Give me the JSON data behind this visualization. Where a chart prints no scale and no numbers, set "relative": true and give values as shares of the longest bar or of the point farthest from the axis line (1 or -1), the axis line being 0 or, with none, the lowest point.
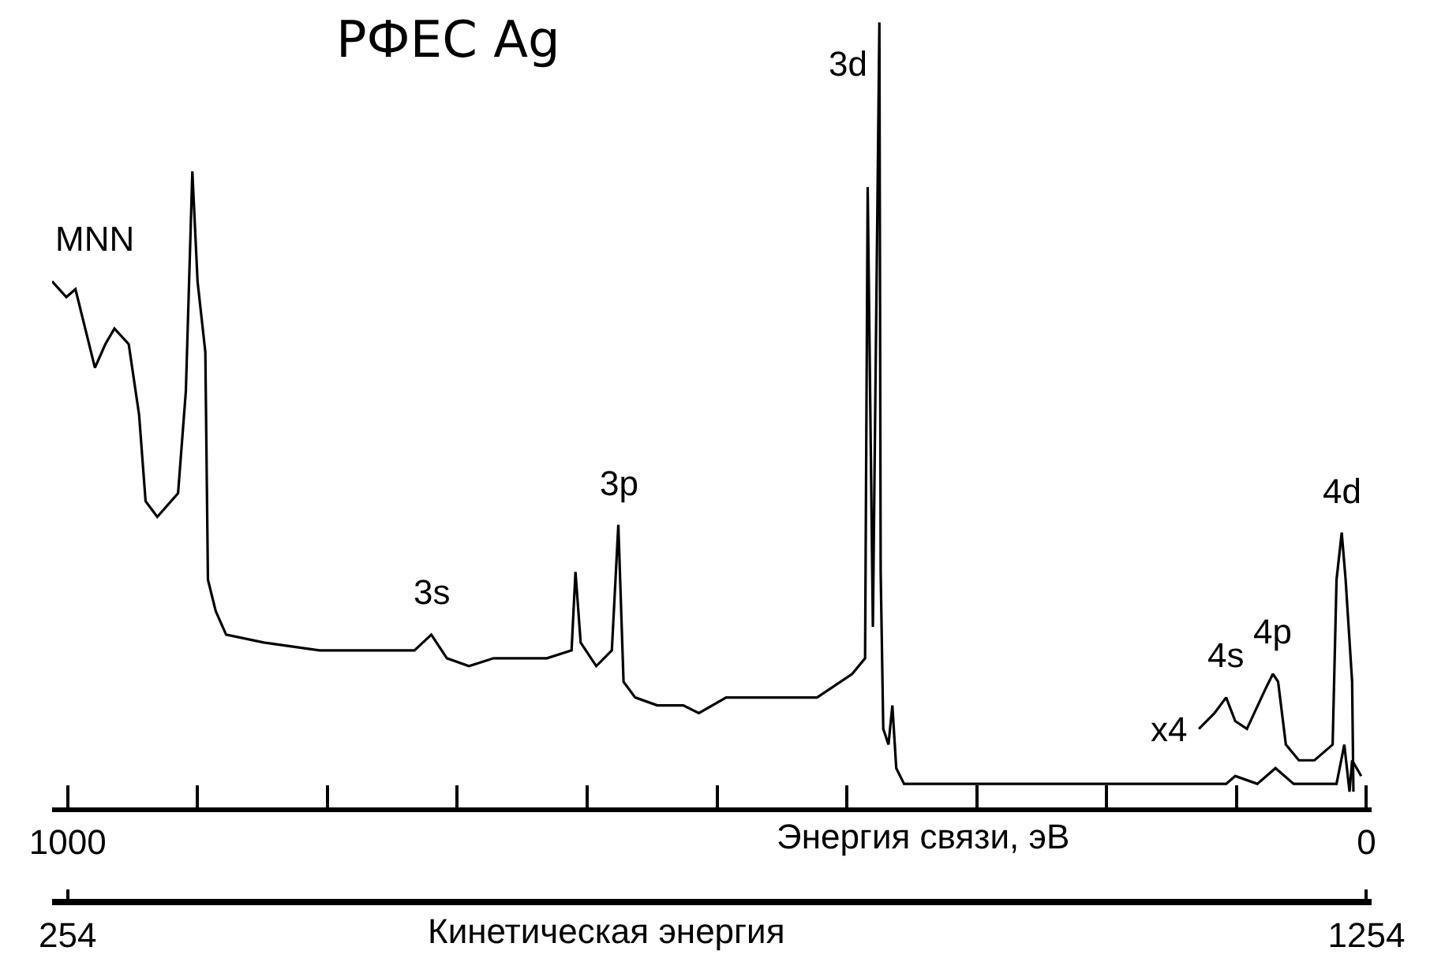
{
  "chart_data": {
    "type": "line",
    "title": "РФЕС Ag",
    "xlabel": "Энергия связи, эВ",
    "x2label": "Кинетическая энергия",
    "relative": true,
    "xlim": [
      1012,
      -4
    ],
    "xticks": [
      1000,
      {
        "value": 900,
        "label": null
      },
      {
        "value": 800,
        "label": null
      },
      {
        "value": 700,
        "label": null
      },
      {
        "value": 600,
        "label": null
      },
      {
        "value": 500,
        "label": null
      },
      {
        "value": 400,
        "label": null
      },
      {
        "value": 300,
        "label": null
      },
      {
        "value": 200,
        "label": null
      },
      {
        "value": 100,
        "label": null
      },
      0
    ],
    "x2lim": [
      242,
      1258
    ],
    "x2ticks": [
      254,
      1254
    ],
    "marker": "none",
    "line_style": "solid",
    "series": [
      {
        "color": "#000000",
        "x": [
          1012,
          1001,
          994,
          988,
          979,
          971,
          964,
          953,
          945,
          940,
          931,
          915,
          909,
          904,
          900,
          894,
          892,
          886,
          878,
          849,
          806,
          733,
          720,
          708,
          691,
          672,
          631,
          612,
          609,
          605,
          593,
          581,
          576,
          572,
          563,
          546,
          526,
          514,
          493,
          478,
          429,
          423,
          396,
          386,
          384,
          380,
          375,
          374,
          372,
          368,
          365,
          362,
          356,
          315,
          275,
          210,
          174,
          108,
          101,
          84,
          70,
          56,
          23,
          17,
          13,
          11,
          4
        ],
        "values": [
          0.67,
          0.65,
          0.66,
          0.62,
          0.56,
          0.59,
          0.61,
          0.59,
          0.5,
          0.39,
          0.37,
          0.4,
          0.53,
          0.81,
          0.67,
          0.58,
          0.29,
          0.25,
          0.22,
          0.21,
          0.2,
          0.2,
          0.22,
          0.19,
          0.18,
          0.19,
          0.19,
          0.2,
          0.3,
          0.21,
          0.18,
          0.2,
          0.36,
          0.16,
          0.14,
          0.13,
          0.13,
          0.12,
          0.14,
          0.14,
          0.14,
          0.14,
          0.17,
          0.19,
          0.79,
          0.23,
          1,
          0.3,
          0.1,
          0.08,
          0.13,
          0.05,
          0.03,
          0.03,
          0.03,
          0.03,
          0.03,
          0.03,
          0.04,
          0.03,
          0.05,
          0.03,
          0.03,
          0.08,
          0.02,
          0.06,
          0.04
        ]
      },
      {
        "color": "#000000",
        "x": [
          129,
          117,
          108,
          101,
          92,
          78,
          72,
          68,
          62,
          52,
          40,
          26,
          23,
          19,
          16,
          11,
          10
        ],
        "values": [
          0.1,
          0.12,
          0.14,
          0.11,
          0.1,
          0.15,
          0.17,
          0.16,
          0.08,
          0.06,
          0.06,
          0.08,
          0.29,
          0.35,
          0.29,
          0.16,
          0.02
        ]
      }
    ],
    "annotations": [
      {
        "text": "MNN",
        "x": 1012,
        "y": 0.67
      },
      {
        "text": "3s",
        "x": 720,
        "y": 0.22
      },
      {
        "text": "3p",
        "x": 576,
        "y": 0.36
      },
      {
        "text": "3d",
        "x": 375,
        "y": 1
      },
      {
        "text": "x4",
        "x": 129,
        "y": 0.1
      },
      {
        "text": "4s",
        "x": 108,
        "y": 0.14
      },
      {
        "text": "4p",
        "x": 72,
        "y": 0.17
      },
      {
        "text": "4d",
        "x": 19,
        "y": 0.35
      }
    ]
  }
}
